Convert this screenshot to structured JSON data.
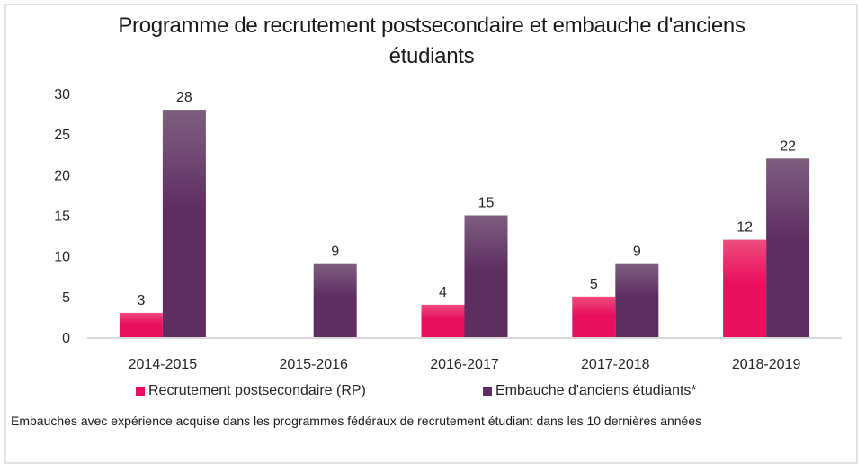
{
  "chart_data": {
    "type": "bar",
    "title": "Programme de recrutement postsecondaire et embauche d'anciens étudiants",
    "title_lines": [
      "Programme de recrutement postsecondaire et embauche d'anciens",
      "étudiants"
    ],
    "categories": [
      "2014-2015",
      "2015-2016",
      "2016-2017",
      "2017-2018",
      "2018-2019"
    ],
    "series": [
      {
        "name": "Recrutement postsecondaire (RP)",
        "values": [
          3,
          null,
          4,
          5,
          12
        ],
        "color": "#e8105e",
        "color_top": "#ee4c7e"
      },
      {
        "name": "Embauche d'anciens étudiants*",
        "values": [
          28,
          9,
          15,
          9,
          22
        ],
        "color": "#5e2d62",
        "color_top": "#7d5f7e"
      }
    ],
    "xlabel": "",
    "ylabel": "",
    "ylim": [
      0,
      30
    ],
    "yticks": [
      0,
      5,
      10,
      15,
      20,
      25,
      30
    ],
    "grid": false,
    "legend_position": "bottom",
    "data_labels": true,
    "footnote": "Embauches avec expérience acquise dans les programmes fédéraux de recrutement étudiant dans les 10 dernières années"
  }
}
